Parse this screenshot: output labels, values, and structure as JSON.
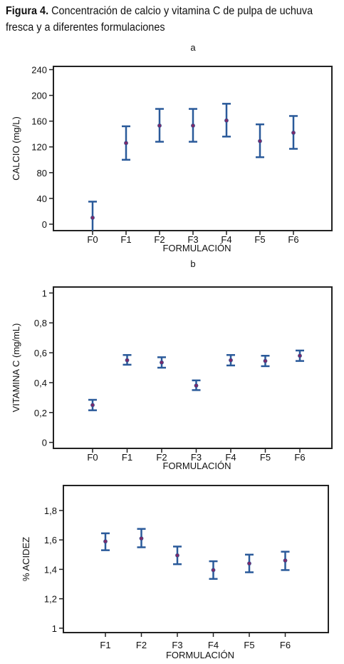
{
  "caption": {
    "label": "Figura 4.",
    "text": "Concentración de calcio y vitamina C de pulpa de uchuva fresca y a diferentes formulaciones"
  },
  "colors": {
    "errorbar": "#2a5a9a",
    "point": "#7a2a6a",
    "axis": "#222222"
  },
  "chart_data": [
    {
      "type": "scatter",
      "panel_label": "a",
      "title": "",
      "xlabel": "FORMULACIÓN",
      "ylabel": "CALCIO (mg/L)",
      "categories": [
        "F0",
        "F1",
        "F2",
        "F3",
        "F4",
        "F5",
        "F6"
      ],
      "values": [
        10,
        126,
        153,
        153,
        161,
        129,
        142
      ],
      "lower": [
        -15,
        100,
        128,
        128,
        136,
        104,
        117
      ],
      "upper": [
        35,
        152,
        179,
        179,
        187,
        155,
        168
      ],
      "yticks": [
        "0",
        "40",
        "80",
        "120",
        "160",
        "200",
        "240"
      ],
      "ylim": [
        -10,
        245
      ],
      "grid": false
    },
    {
      "type": "scatter",
      "panel_label": "b",
      "title": "",
      "xlabel": "FORMULACIÓN",
      "ylabel": "VITAMINA C (mg/mL)",
      "categories": [
        "F0",
        "F1",
        "F2",
        "F3",
        "F4",
        "F5",
        "F6"
      ],
      "values": [
        0.25,
        0.55,
        0.535,
        0.38,
        0.55,
        0.545,
        0.58
      ],
      "lower": [
        0.215,
        0.52,
        0.5,
        0.35,
        0.515,
        0.51,
        0.545
      ],
      "upper": [
        0.285,
        0.585,
        0.57,
        0.415,
        0.585,
        0.58,
        0.615
      ],
      "yticks": [
        "0",
        "0,2",
        "0,4",
        "0,6",
        "0,8",
        "1"
      ],
      "ylim": [
        -0.04,
        1.04
      ],
      "grid": false
    },
    {
      "type": "scatter",
      "panel_label": "",
      "title": "",
      "xlabel": "FORMULACIÓN",
      "ylabel": "% ACIDEZ",
      "categories": [
        "F1",
        "F2",
        "F3",
        "F4",
        "F5",
        "F6"
      ],
      "values": [
        1.59,
        1.61,
        1.495,
        1.395,
        1.44,
        1.46
      ],
      "lower": [
        1.53,
        1.55,
        1.435,
        1.335,
        1.38,
        1.395
      ],
      "upper": [
        1.645,
        1.675,
        1.555,
        1.455,
        1.5,
        1.52
      ],
      "yticks": [
        "1",
        "1,2",
        "1,4",
        "1,6",
        "1,8"
      ],
      "ylim": [
        0.97,
        1.97
      ],
      "grid": false
    }
  ]
}
